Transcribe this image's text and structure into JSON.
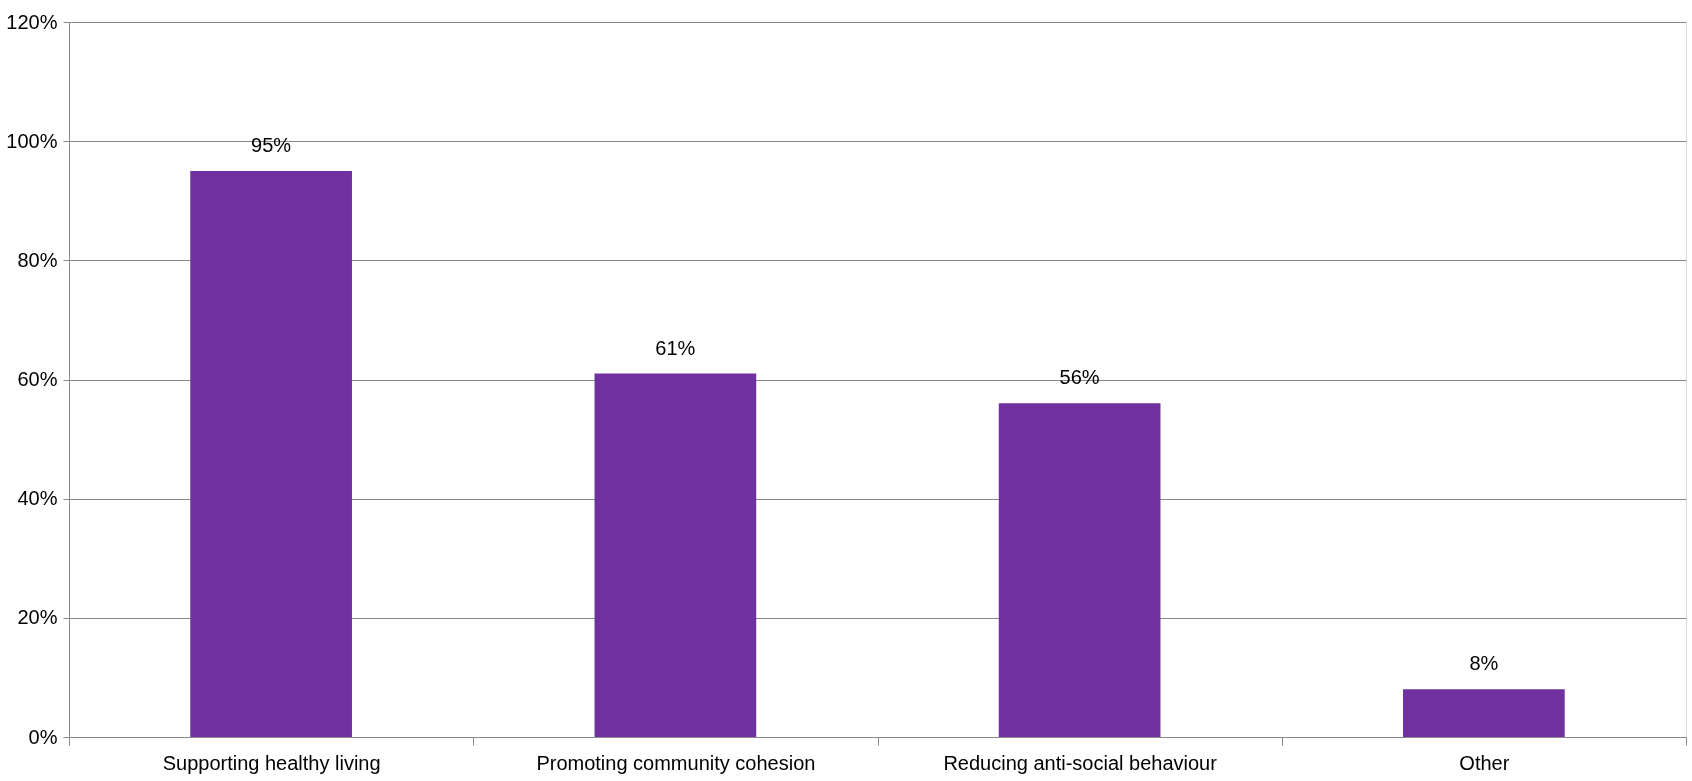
{
  "chart_data": {
    "type": "bar",
    "categories": [
      "Supporting healthy living",
      "Promoting community cohesion",
      "Reducing anti-social behaviour",
      "Other"
    ],
    "values": [
      95,
      61,
      56,
      8
    ],
    "value_labels": [
      "95%",
      "61%",
      "56%",
      "8%"
    ],
    "color": "#7030a0",
    "ylim": [
      0,
      120
    ],
    "yticks": [
      {
        "value": 0,
        "label": "0%"
      },
      {
        "value": 20,
        "label": "20%"
      },
      {
        "value": 40,
        "label": "40%"
      },
      {
        "value": 60,
        "label": "60%"
      },
      {
        "value": 80,
        "label": "80%"
      },
      {
        "value": 100,
        "label": "100%"
      },
      {
        "value": 120,
        "label": "120%"
      }
    ],
    "grid": "y"
  }
}
